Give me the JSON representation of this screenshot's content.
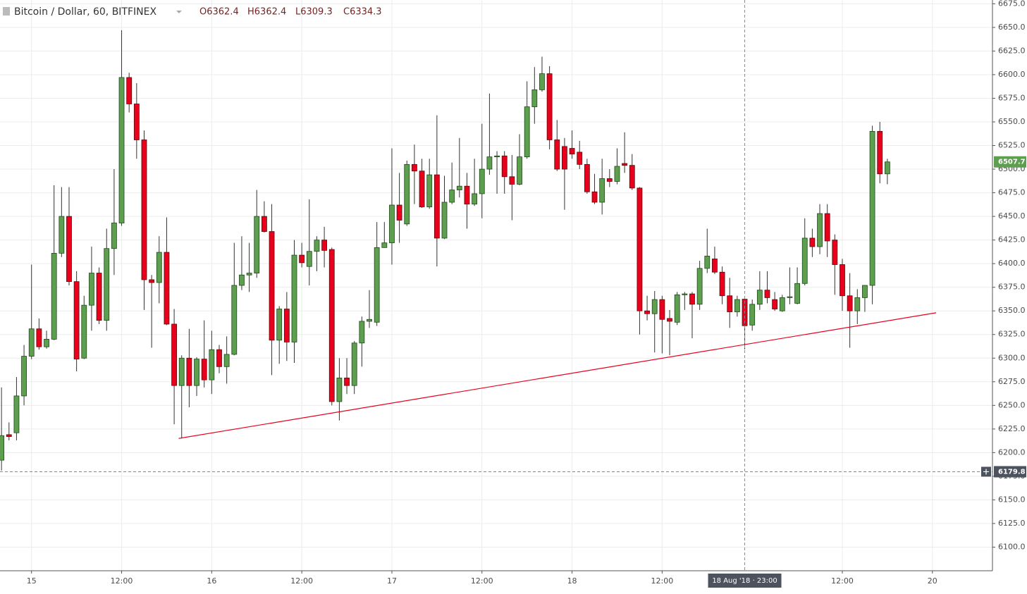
{
  "chart_data": {
    "type": "candlestick",
    "title": "Bitcoin / Dollar, 60, BITFINEX",
    "ohlc_header": [
      "O6362.4",
      "H6362.4",
      "L6309.3",
      "C6334.3"
    ],
    "x": [
      -4,
      -3,
      -2,
      -1,
      0,
      1,
      2,
      3,
      4,
      5,
      6,
      7,
      8,
      9,
      10,
      11,
      12,
      13,
      14,
      15,
      16,
      17,
      18,
      19,
      20,
      21,
      22,
      23,
      24,
      25,
      26,
      27,
      28,
      29,
      30,
      31,
      32,
      33,
      34,
      35,
      36,
      37,
      38,
      39,
      40,
      41,
      42,
      43,
      44,
      45,
      46,
      47,
      48,
      49,
      50,
      51,
      52,
      53,
      54,
      55,
      56,
      57,
      58,
      59,
      60,
      61,
      62,
      63,
      64,
      65,
      66,
      67,
      68,
      69,
      70,
      71,
      72,
      73,
      74,
      75,
      76,
      77,
      78,
      79,
      80,
      81,
      82,
      83,
      84,
      85,
      86,
      87,
      88,
      89,
      90,
      91,
      92,
      93,
      94,
      95,
      96,
      97,
      98,
      99,
      100,
      101,
      102,
      103,
      104,
      105,
      106,
      107,
      108,
      109,
      110,
      111,
      112,
      113,
      114
    ],
    "open": [
      6192,
      6219,
      6221,
      6260,
      6302,
      6331,
      6312,
      6320,
      6411,
      6450,
      6381,
      6300,
      6356,
      6390,
      6340,
      6416,
      6443,
      6597,
      6569,
      6531,
      6383,
      6380,
      6412,
      6336,
      6271,
      6300,
      6271,
      6299,
      6277,
      6309,
      6291,
      6304,
      6377,
      6388,
      6390,
      6450,
      6434,
      6319,
      6352,
      6317,
      6409,
      6397,
      6413,
      6425,
      6415,
      6254,
      6279,
      6271,
      6316,
      6339,
      6338,
      6417,
      6422,
      6462,
      6442,
      6505,
      6498,
      6460,
      6494,
      6427,
      6465,
      6478,
      6482,
      6463,
      6474,
      6500,
      6513,
      6514,
      6492,
      6484,
      6513,
      6566,
      6584,
      6601,
      6531,
      6524,
      6522,
      6518,
      6505,
      6476,
      6465,
      6490,
      6487,
      6506,
      6504,
      6480,
      6350,
      6347,
      6362,
      6342,
      6338,
      6367,
      6368,
      6357,
      6395,
      6405,
      6391,
      6366,
      6349,
      6362.4,
      6335,
      6357,
      6372,
      6362,
      6350,
      6364,
      6358,
      6379,
      6427,
      6418,
      6453,
      6425,
      6399,
      6366,
      6350,
      6364,
      6377,
      6540,
      6495
    ],
    "high": [
      6269,
      6232,
      6280,
      6314,
      6399,
      6342,
      6329,
      6483,
      6481,
      6481,
      6392,
      6366,
      6418,
      6396,
      6437,
      6500,
      6647,
      6602,
      6591,
      6541,
      6388,
      6429,
      6449,
      6352,
      6303,
      6331,
      6301,
      6340,
      6329,
      6314,
      6323,
      6422,
      6429,
      6422,
      6478,
      6466,
      6463,
      6355,
      6370,
      6425,
      6422,
      6468,
      6429,
      6439,
      6417,
      6300,
      6300,
      6318,
      6344,
      6372,
      6444,
      6444,
      6522,
      6496,
      6509,
      6526,
      6511,
      6511,
      6557,
      6493,
      6507,
      6533,
      6496,
      6511,
      6548,
      6580,
      6519,
      6519,
      6515,
      6537,
      6593,
      6608,
      6619,
      6609,
      6552,
      6533,
      6541,
      6530,
      6511,
      6495,
      6511,
      6500,
      6522,
      6539,
      6516,
      6481,
      6366,
      6371,
      6366,
      6351,
      6370,
      6370,
      6370,
      6403,
      6437,
      6418,
      6397,
      6385,
      6366,
      6362.4,
      6362,
      6392,
      6392,
      6370,
      6367,
      6396,
      6396,
      6448,
      6437,
      6463,
      6463,
      6431,
      6405,
      6390,
      6373,
      6377,
      6546,
      6550,
      6511
    ],
    "low": [
      6181,
      6213,
      6213,
      6250,
      6299,
      6309,
      6310,
      6319,
      6407,
      6377,
      6286,
      6299,
      6329,
      6336,
      6329,
      6388,
      6440,
      6560,
      6511,
      6351,
      6311,
      6358,
      6335,
      6230,
      6215,
      6248,
      6260,
      6269,
      6262,
      6284,
      6273,
      6303,
      6372,
      6370,
      6385,
      6433,
      6282,
      6294,
      6297,
      6295,
      6396,
      6377,
      6392,
      6396,
      6250,
      6234,
      6262,
      6262,
      6291,
      6332,
      6334,
      6417,
      6399,
      6422,
      6440,
      6463,
      6459,
      6458,
      6397,
      6426,
      6463,
      6470,
      6437,
      6461,
      6448,
      6494,
      6474,
      6474,
      6446,
      6483,
      6511,
      6548,
      6582,
      6521,
      6498,
      6457,
      6511,
      6500,
      6474,
      6463,
      6452,
      6481,
      6484,
      6496,
      6478,
      6325,
      6340,
      6306,
      6305,
      6303,
      6335,
      6351,
      6321,
      6351,
      6390,
      6389,
      6357,
      6332,
      6344,
      6309.3,
      6329,
      6351,
      6358,
      6350,
      6349,
      6357,
      6357,
      6377,
      6407,
      6410,
      6407,
      6367,
      6350,
      6311,
      6336,
      6349,
      6357,
      6485,
      6484
    ],
    "close": [
      6218,
      6217,
      6260,
      6302,
      6331,
      6312,
      6320,
      6411,
      6450,
      6381,
      6299,
      6356,
      6390,
      6340,
      6416,
      6443,
      6597,
      6569,
      6531,
      6383,
      6380,
      6412,
      6336,
      6271,
      6300,
      6271,
      6299,
      6277,
      6309,
      6291,
      6304,
      6377,
      6388,
      6390,
      6450,
      6434,
      6319,
      6352,
      6317,
      6409,
      6401,
      6413,
      6425,
      6414,
      6254,
      6279,
      6271,
      6316,
      6339,
      6341,
      6417,
      6422,
      6462,
      6446,
      6505,
      6498,
      6460,
      6494,
      6427,
      6465,
      6478,
      6482,
      6463,
      6474,
      6500,
      6513,
      6514,
      6492,
      6484,
      6513,
      6566,
      6584,
      6601,
      6531,
      6500,
      6500,
      6516,
      6505,
      6476,
      6465,
      6490,
      6487,
      6503,
      6504,
      6480,
      6350,
      6347,
      6362,
      6341,
      6339,
      6367,
      6368,
      6357,
      6395,
      6408,
      6391,
      6366,
      6349,
      6362,
      6334.3,
      6357,
      6372,
      6364,
      6352,
      6364,
      6365,
      6379,
      6427,
      6418,
      6453,
      6424,
      6399,
      6366,
      6350,
      6364,
      6377,
      6540,
      6495,
      6507.7
    ],
    "up_color": "#5d9e4f",
    "down_color": "#e8001c",
    "xlim": [
      -4.2,
      128
    ],
    "ylim": [
      6075,
      6679
    ],
    "xticks": [
      {
        "value": 0,
        "label": "15"
      },
      {
        "value": 12,
        "label": "12:00"
      },
      {
        "value": 24,
        "label": "16"
      },
      {
        "value": 36,
        "label": "12:00"
      },
      {
        "value": 48,
        "label": "17"
      },
      {
        "value": 60,
        "label": "12:00"
      },
      {
        "value": 72,
        "label": "18"
      },
      {
        "value": 84,
        "label": "12:00"
      },
      {
        "value": 108,
        "label": "12:00"
      },
      {
        "value": 120,
        "label": "20"
      }
    ],
    "yticks": [
      {
        "value": 6100,
        "label": "6100.0"
      },
      {
        "value": 6125,
        "label": "6125.0"
      },
      {
        "value": 6150,
        "label": "6150.0"
      },
      {
        "value": 6175,
        "label": "6175.0"
      },
      {
        "value": 6200,
        "label": "6200.0"
      },
      {
        "value": 6225,
        "label": "6225.0"
      },
      {
        "value": 6250,
        "label": "6250.0"
      },
      {
        "value": 6275,
        "label": "6275.0"
      },
      {
        "value": 6300,
        "label": "6300.0"
      },
      {
        "value": 6325,
        "label": "6325.0"
      },
      {
        "value": 6350,
        "label": "6350.0"
      },
      {
        "value": 6375,
        "label": "6375.0"
      },
      {
        "value": 6400,
        "label": "6400.0"
      },
      {
        "value": 6425,
        "label": "6425.0"
      },
      {
        "value": 6450,
        "label": "6450.0"
      },
      {
        "value": 6475,
        "label": "6475.0"
      },
      {
        "value": 6500,
        "label": "6500.0"
      },
      {
        "value": 6525,
        "label": "6525.0"
      },
      {
        "value": 6550,
        "label": "6550.0"
      },
      {
        "value": 6575,
        "label": "6575.0"
      },
      {
        "value": 6600,
        "label": "6600.0"
      },
      {
        "value": 6625,
        "label": "6625.0"
      },
      {
        "value": 6650,
        "label": "6650.0"
      },
      {
        "value": 6675,
        "label": "6675.0"
      }
    ],
    "grid": true,
    "crosshair": {
      "x": 95,
      "x_label": "18 Aug '18 · 23:00",
      "y": 6179.8
    },
    "last_price": 6507.7,
    "trendline": {
      "x": [
        19.6,
        120.5
      ],
      "y": [
        6215,
        6348
      ],
      "color": "#e8001c"
    }
  }
}
